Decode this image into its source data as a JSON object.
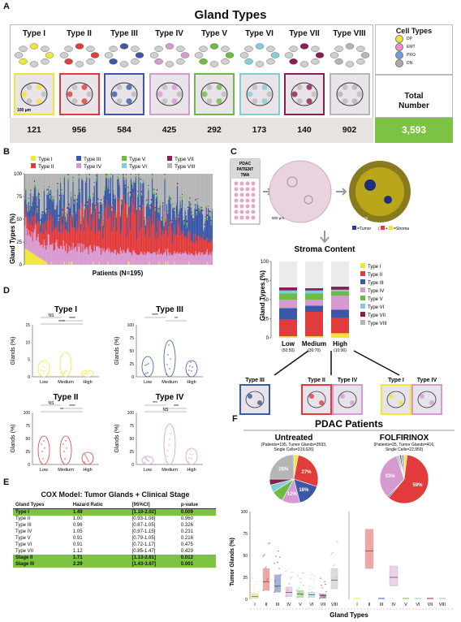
{
  "panel_a": {
    "label": "A",
    "title": "Gland Types",
    "types": [
      {
        "name": "Type I",
        "count": "121",
        "color": "#f1e53a"
      },
      {
        "name": "Type II",
        "count": "956",
        "color": "#e23b3b"
      },
      {
        "name": "Type III",
        "count": "584",
        "color": "#3a57a8"
      },
      {
        "name": "Type IV",
        "count": "425",
        "color": "#d79ad0"
      },
      {
        "name": "Type V",
        "count": "292",
        "color": "#6dbb44"
      },
      {
        "name": "Type VI",
        "count": "173",
        "color": "#7fcfd6"
      },
      {
        "name": "Type VII",
        "count": "140",
        "color": "#8a1e52"
      },
      {
        "name": "Type VIII",
        "count": "902",
        "color": "#b5b5b5"
      }
    ],
    "cell_types_title": "Cell Types",
    "cell_types": [
      {
        "label": "DP",
        "color": "#f1e53a"
      },
      {
        "label": "EMT",
        "color": "#e790c9"
      },
      {
        "label": "PRO",
        "color": "#6d9de0"
      },
      {
        "label": "DN",
        "color": "#aaaaaa"
      }
    ],
    "scale_label": "100 µm",
    "total_label": "Total\nNumber",
    "total_value": "3,593",
    "total_color": "#7cc243"
  },
  "panel_b": {
    "label": "B",
    "ylabel": "Gland Types (%)",
    "xlabel": "Patients (N=195)",
    "yticks": [
      "0",
      "25",
      "50",
      "75",
      "100"
    ],
    "legend": [
      "Type I",
      "Type II",
      "Type III",
      "Type IV",
      "Type V",
      "Type VI",
      "Type VII",
      "Type VIII"
    ]
  },
  "panel_c": {
    "label": "C",
    "tma_label": "PDAC\nPATIENT\nTMA",
    "scale1": "500 µm",
    "scale2": "500 µm",
    "tumor_legend": "=Tumor",
    "stroma_legend": "=Stroma",
    "chart_title": "Stroma Content",
    "ylabel": "Gland Types (%)",
    "categories": [
      "Low",
      "Medium",
      "High"
    ],
    "cat_sub": [
      "(50:50)",
      "(30:70)",
      "(10:90)"
    ],
    "yticks": [
      "0",
      "25",
      "50",
      "75",
      "100"
    ],
    "bottom_labels": [
      "Type III",
      "Type II",
      "Type IV",
      "Type I",
      "Type IV"
    ]
  },
  "panel_d": {
    "label": "D",
    "ylabel": "Glands (%)",
    "xcats": [
      "Low",
      "Medium",
      "High"
    ],
    "subplots": [
      {
        "title": "Type I",
        "sig": [
          "NS",
          "****",
          "****"
        ],
        "yticks": [
          "0",
          "5",
          "10",
          "15"
        ]
      },
      {
        "title": "Type III",
        "sig": [
          "****",
          "**"
        ],
        "yticks": [
          "0",
          "25",
          "50",
          "75",
          "100"
        ]
      },
      {
        "title": "Type II",
        "sig": [
          "NS",
          "****",
          "**"
        ],
        "yticks": [
          "0",
          "25",
          "50",
          "75",
          "100"
        ]
      },
      {
        "title": "Type IV",
        "sig": [
          "***",
          "***",
          "NS"
        ],
        "yticks": [
          "0",
          "25",
          "50",
          "75",
          "100"
        ]
      }
    ]
  },
  "panel_e": {
    "label": "E",
    "title": "COX Model: Tumor Glands + Clinical Stage",
    "headers": [
      "Gland Types",
      "Hazard Ratio",
      "[95%CI]",
      "p-value"
    ],
    "rows": [
      {
        "name": "Type I",
        "hr": "1.49",
        "ci": "[1.10-2.02]",
        "p": "0.009",
        "hl": true
      },
      {
        "name": "Type II",
        "hr": "1.00",
        "ci": "[0.93-1.08]",
        "p": "0.960",
        "hl": false
      },
      {
        "name": "Type III",
        "hr": "0.96",
        "ci": "[0.87-1.05]",
        "p": "0.326",
        "hl": false
      },
      {
        "name": "Type IV",
        "hr": "1.05",
        "ci": "[0.97-1.15]",
        "p": "0.231",
        "hl": false
      },
      {
        "name": "Type V",
        "hr": "0.91",
        "ci": "[0.79-1.05]",
        "p": "0.216",
        "hl": false
      },
      {
        "name": "Type VI",
        "hr": "0.91",
        "ci": "[0.72-1.17]",
        "p": "0.475",
        "hl": false
      },
      {
        "name": "Type VII",
        "hr": "1.12",
        "ci": "[0.85-1.47]",
        "p": "0.429",
        "hl": false
      },
      {
        "name": "Stage II",
        "hr": "1.71",
        "ci": "[1.13-2.61]",
        "p": "0.012",
        "hl": true
      },
      {
        "name": "Stage III",
        "hr": "2.29",
        "ci": "[1.43-3.67]",
        "p": "0.001",
        "hl": true
      }
    ]
  },
  "panel_f": {
    "label": "F",
    "title": "PDAC Patients",
    "untreated_title": "Untreated",
    "untreated_sub": "(Patients=195, Tumor Glands=3593,\nSingle Cells=319,626)",
    "folfirinox_title": "FOLFIRINOX",
    "folfirinox_sub": "(Patients=25, Tumor Glands=416,\nSingle Cells=22,959)",
    "ylabel": "Tumor Glands (%)",
    "xlabel": "Gland Types",
    "xcats": [
      "I",
      "II",
      "III",
      "IV",
      "V",
      "VI",
      "VII",
      "VIII"
    ],
    "yticks": [
      "0",
      "25",
      "50",
      "75",
      "100"
    ]
  },
  "chart_data": [
    {
      "type": "bar",
      "id": "stroma-content",
      "title": "Stroma Content",
      "categories": [
        "Low",
        "Medium",
        "High"
      ],
      "ylabel": "Gland Types (%)",
      "ylim": [
        0,
        100
      ],
      "series": [
        {
          "name": "Type I",
          "values": [
            2,
            2,
            6
          ]
        },
        {
          "name": "Type II",
          "values": [
            22,
            32,
            20
          ]
        },
        {
          "name": "Type III",
          "values": [
            15,
            8,
            11
          ]
        },
        {
          "name": "Type IV",
          "values": [
            11,
            8,
            18
          ]
        },
        {
          "name": "Type V",
          "values": [
            8,
            8,
            6
          ]
        },
        {
          "name": "Type VI",
          "values": [
            4,
            4,
            2
          ]
        },
        {
          "name": "Type VII",
          "values": [
            4,
            3,
            4
          ]
        },
        {
          "name": "Type VIII",
          "values": [
            34,
            35,
            33
          ]
        }
      ]
    },
    {
      "type": "pie",
      "id": "untreated-pie",
      "title": "Untreated",
      "labels": [
        "Type I",
        "Type II",
        "Type III",
        "Type IV",
        "Type V",
        "Type VI",
        "Type VII",
        "Type VIII"
      ],
      "values": [
        3,
        27,
        16,
        12,
        8,
        5,
        4,
        25
      ],
      "data_labels": [
        "",
        "27%",
        "16%",
        "12%",
        "",
        "",
        "",
        "25%"
      ]
    },
    {
      "type": "pie",
      "id": "folfirinox-pie",
      "title": "FOLFIRINOX",
      "labels": [
        "Type I",
        "Type II",
        "Type III",
        "Type IV",
        "Type V",
        "Type VI",
        "Type VII",
        "Type VIII"
      ],
      "values": [
        2,
        59,
        1,
        33,
        1,
        1,
        1,
        2
      ],
      "data_labels": [
        "",
        "59%",
        "",
        "33%",
        "",
        "",
        "",
        ""
      ]
    }
  ]
}
